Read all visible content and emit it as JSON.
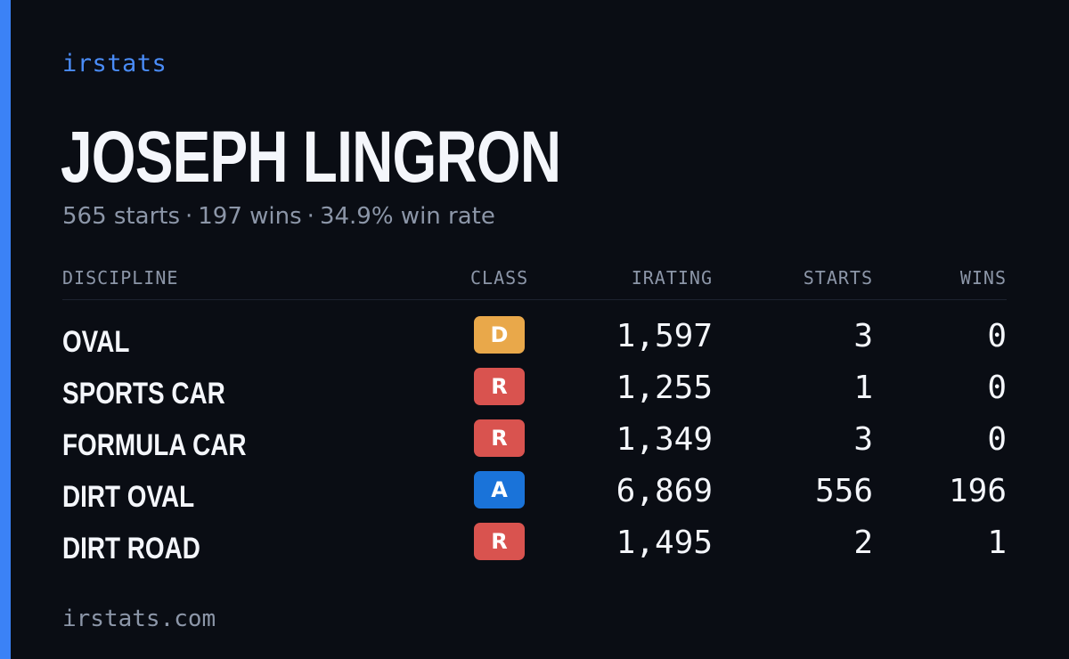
{
  "brand": "irstats",
  "driver": {
    "name": "JOSEPH LINGRON",
    "summary_parts": [
      "565 starts",
      "197 wins",
      "34.9% win rate"
    ],
    "separator": "·"
  },
  "table": {
    "headers": {
      "discipline": "DISCIPLINE",
      "class": "CLASS",
      "irating": "IRATING",
      "starts": "STARTS",
      "wins": "WINS"
    },
    "rows": [
      {
        "discipline": "OVAL",
        "class": "D",
        "class_color": "#e9a84a",
        "irating": "1,597",
        "starts": "3",
        "wins": "0"
      },
      {
        "discipline": "SPORTS CAR",
        "class": "R",
        "class_color": "#d9534f",
        "irating": "1,255",
        "starts": "1",
        "wins": "0"
      },
      {
        "discipline": "FORMULA CAR",
        "class": "R",
        "class_color": "#d9534f",
        "irating": "1,349",
        "starts": "3",
        "wins": "0"
      },
      {
        "discipline": "DIRT OVAL",
        "class": "A",
        "class_color": "#1a73d9",
        "irating": "6,869",
        "starts": "556",
        "wins": "196"
      },
      {
        "discipline": "DIRT ROAD",
        "class": "R",
        "class_color": "#d9534f",
        "irating": "1,495",
        "starts": "2",
        "wins": "1"
      }
    ]
  },
  "footer": "irstats.com",
  "colors": {
    "background": "#0a0d14",
    "accent": "#3b82f6",
    "muted": "#8c96a8",
    "text": "#f4f6fb"
  }
}
